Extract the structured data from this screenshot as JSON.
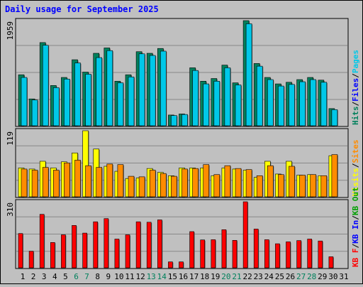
{
  "chart_data": [
    {
      "type": "bar",
      "title": "Daily usage for September 2025",
      "ylabel": "1959",
      "ylim": [
        0,
        1959
      ],
      "series": [
        {
          "name": "Hits",
          "color": "#00805c",
          "values": [
            950,
            500,
            1550,
            750,
            900,
            1230,
            1000,
            1350,
            1450,
            830,
            950,
            1380,
            1350,
            1440,
            200,
            220,
            1080,
            830,
            880,
            1130,
            800,
            1959,
            1160,
            900,
            780,
            810,
            860,
            900,
            850,
            320
          ]
        },
        {
          "name": "Files",
          "color": "#0000ff",
          "values": [
            0,
            0,
            0,
            0,
            0,
            0,
            0,
            0,
            0,
            0,
            0,
            0,
            0,
            0,
            0,
            0,
            0,
            0,
            0,
            0,
            0,
            0,
            0,
            0,
            0,
            0,
            0,
            0,
            0,
            0
          ]
        },
        {
          "name": "Pages",
          "color": "#00c8e8",
          "values": [
            900,
            480,
            1500,
            710,
            870,
            1170,
            960,
            1270,
            1400,
            800,
            910,
            1340,
            1310,
            1390,
            190,
            210,
            1030,
            780,
            830,
            1080,
            760,
            1900,
            1110,
            860,
            740,
            770,
            820,
            860,
            810,
            300
          ]
        }
      ]
    },
    {
      "type": "bar",
      "ylabel": "119",
      "ylim": [
        0,
        119
      ],
      "series": [
        {
          "name": "Visits",
          "color": "#ffff00",
          "values": [
            52,
            50,
            64,
            52,
            63,
            79,
            119,
            86,
            55,
            46,
            33,
            34,
            51,
            44,
            38,
            52,
            52,
            52,
            38,
            52,
            50,
            48,
            35,
            64,
            41,
            64,
            39,
            40,
            38,
            74
          ]
        },
        {
          "name": "Sites",
          "color": "#ff8c00",
          "values": [
            50,
            48,
            53,
            48,
            61,
            66,
            56,
            53,
            59,
            58,
            37,
            36,
            48,
            42,
            37,
            50,
            51,
            58,
            40,
            56,
            51,
            49,
            38,
            56,
            40,
            55,
            39,
            40,
            38,
            76
          ]
        }
      ]
    },
    {
      "type": "bar",
      "ylabel": "310",
      "ylim": [
        0,
        310
      ],
      "series": [
        {
          "name": "KB F",
          "color": "#ff0000",
          "values": [
            161,
            78,
            251,
            119,
            155,
            199,
            163,
            216,
            231,
            135,
            155,
            216,
            214,
            225,
            28,
            28,
            170,
            131,
            132,
            179,
            129,
            310,
            182,
            132,
            113,
            122,
            128,
            135,
            126,
            52
          ]
        },
        {
          "name": "KB In",
          "color": "#0000ff",
          "values": [
            0,
            0,
            0,
            0,
            0,
            0,
            0,
            0,
            0,
            0,
            0,
            0,
            0,
            0,
            0,
            0,
            0,
            0,
            0,
            0,
            0,
            0,
            0,
            0,
            0,
            0,
            0,
            0,
            0,
            0
          ]
        },
        {
          "name": "KB Out",
          "color": "#00a000",
          "values": [
            0,
            0,
            0,
            0,
            0,
            0,
            0,
            0,
            0,
            0,
            0,
            0,
            0,
            0,
            0,
            0,
            0,
            0,
            0,
            0,
            0,
            0,
            0,
            0,
            0,
            0,
            0,
            0,
            0,
            0
          ]
        }
      ]
    }
  ],
  "x_labels": [
    "1",
    "2",
    "3",
    "4",
    "5",
    "6",
    "7",
    "8",
    "9",
    "10",
    "11",
    "12",
    "13",
    "14",
    "15",
    "16",
    "17",
    "18",
    "19",
    "20",
    "21",
    "22",
    "23",
    "24",
    "25",
    "26",
    "27",
    "28",
    "29",
    "30",
    "31"
  ],
  "weekend_days": [
    6,
    7,
    13,
    14,
    20,
    21,
    27,
    28
  ],
  "colors": {
    "title": "#0000ff",
    "weekday_label": "#000000",
    "weekend_label": "#00805c",
    "plot_bg": "#c0c0c0",
    "gridline": "#888888"
  },
  "legend_sep": "/"
}
